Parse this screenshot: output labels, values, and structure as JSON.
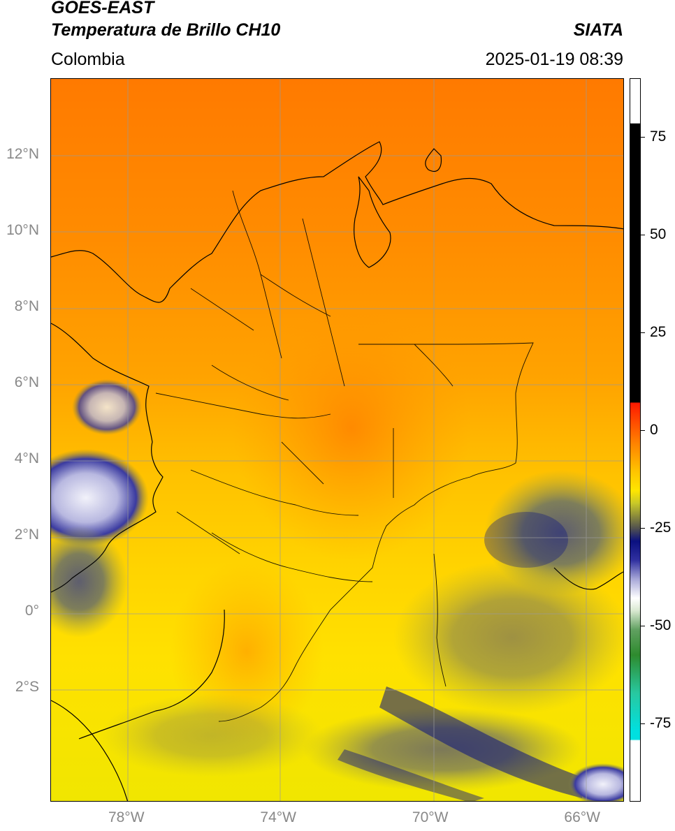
{
  "header": {
    "satellite": "GOES-EAST",
    "product": "Temperatura de Brillo CH10",
    "region": "Colombia",
    "agency": "SIATA",
    "datetime": "2025-01-19 08:39"
  },
  "map": {
    "projection": "PlateCarree",
    "lon_range": [
      -80,
      -64.9
    ],
    "lat_range": [
      -5,
      14
    ],
    "gridlines": true,
    "lat_ticks": [
      {
        "value": 12,
        "label": "12°N"
      },
      {
        "value": 10,
        "label": "10°N"
      },
      {
        "value": 8,
        "label": "8°N"
      },
      {
        "value": 6,
        "label": "6°N"
      },
      {
        "value": 4,
        "label": "4°N"
      },
      {
        "value": 2,
        "label": "2°N"
      },
      {
        "value": 0,
        "label": "0°"
      },
      {
        "value": -2,
        "label": "2°S"
      }
    ],
    "lon_ticks": [
      {
        "value": -78,
        "label": "78°W"
      },
      {
        "value": -74,
        "label": "74°W"
      },
      {
        "value": -70,
        "label": "70°W"
      },
      {
        "value": -66,
        "label": "66°W"
      }
    ]
  },
  "colorbar": {
    "range": [
      -95,
      90
    ],
    "ticks": [
      {
        "value": 75,
        "label": "75"
      },
      {
        "value": 50,
        "label": "50"
      },
      {
        "value": 25,
        "label": "25"
      },
      {
        "value": 0,
        "label": "0"
      },
      {
        "value": -25,
        "label": "-25"
      },
      {
        "value": -50,
        "label": "-50"
      },
      {
        "value": -75,
        "label": "-75"
      }
    ],
    "colors": {
      "black": "#000000",
      "red": "#ff1a00",
      "orange": "#ff8a00",
      "yellow": "#ffe600",
      "olive": "#8c8c3a",
      "navy": "#0a1080",
      "lavender": "#c8c8e8",
      "white": "#ffffff",
      "green": "#2e8b2e",
      "teal": "#28c8a0",
      "cyan": "#00e0e0"
    }
  }
}
